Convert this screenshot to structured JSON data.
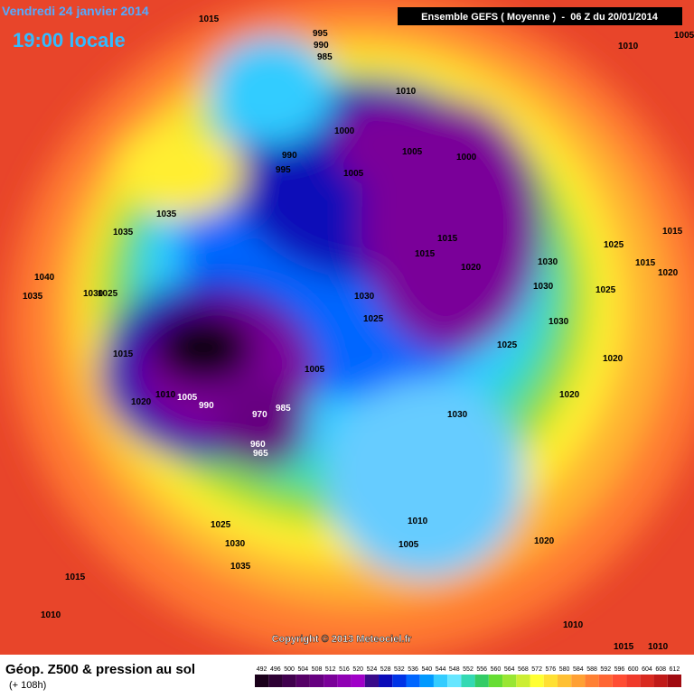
{
  "header": {
    "date": "Vendredi 24 janvier 2014",
    "time": "19:00 locale",
    "run": "Ensemble GEFS ( Moyenne )  -  06 Z du 20/01/2014"
  },
  "map": {
    "isobar_labels": [
      1015,
      995,
      990,
      985,
      1010,
      1005,
      1010,
      1000,
      990,
      995,
      1005,
      1000,
      1005,
      1035,
      1035,
      1015,
      1015,
      1020,
      1025,
      1015,
      1015,
      1020,
      1040,
      1035,
      1030,
      1025,
      1030,
      1030,
      1025,
      1030,
      1025,
      1030,
      1025,
      1015,
      1005,
      1020,
      1020,
      1030,
      1020,
      1010,
      1005,
      990,
      970,
      985,
      960,
      965,
      1010,
      1005,
      1020,
      1025,
      1030,
      1035,
      1015,
      1010,
      1010,
      1015,
      1010
    ],
    "copyright": "Copyright © 2013 Meteociel.fr"
  },
  "footer": {
    "title": "Géop. Z500 & pression au sol",
    "subtitle": "(+ 108h)",
    "scale": {
      "labels": [
        492,
        496,
        500,
        504,
        508,
        512,
        516,
        520,
        524,
        528,
        532,
        536,
        540,
        544,
        548,
        552,
        556,
        560,
        564,
        568,
        572,
        576,
        580,
        584,
        588,
        592,
        596,
        600,
        604,
        608,
        612
      ],
      "colors": [
        "#1a001a",
        "#2d0033",
        "#40004d",
        "#550066",
        "#660080",
        "#7a0099",
        "#8f00b3",
        "#a000c8",
        "#3a0a8a",
        "#0a0ab8",
        "#0033e6",
        "#0066ff",
        "#0099ff",
        "#33ccff",
        "#66e6ff",
        "#33d9b3",
        "#33cc66",
        "#66dd33",
        "#99e633",
        "#ccee33",
        "#ffff33",
        "#ffe033",
        "#ffc033",
        "#ffa033",
        "#ff8033",
        "#ff6633",
        "#ff4d33",
        "#f03a2a",
        "#d92a20",
        "#c01a18",
        "#a00a10"
      ]
    }
  }
}
